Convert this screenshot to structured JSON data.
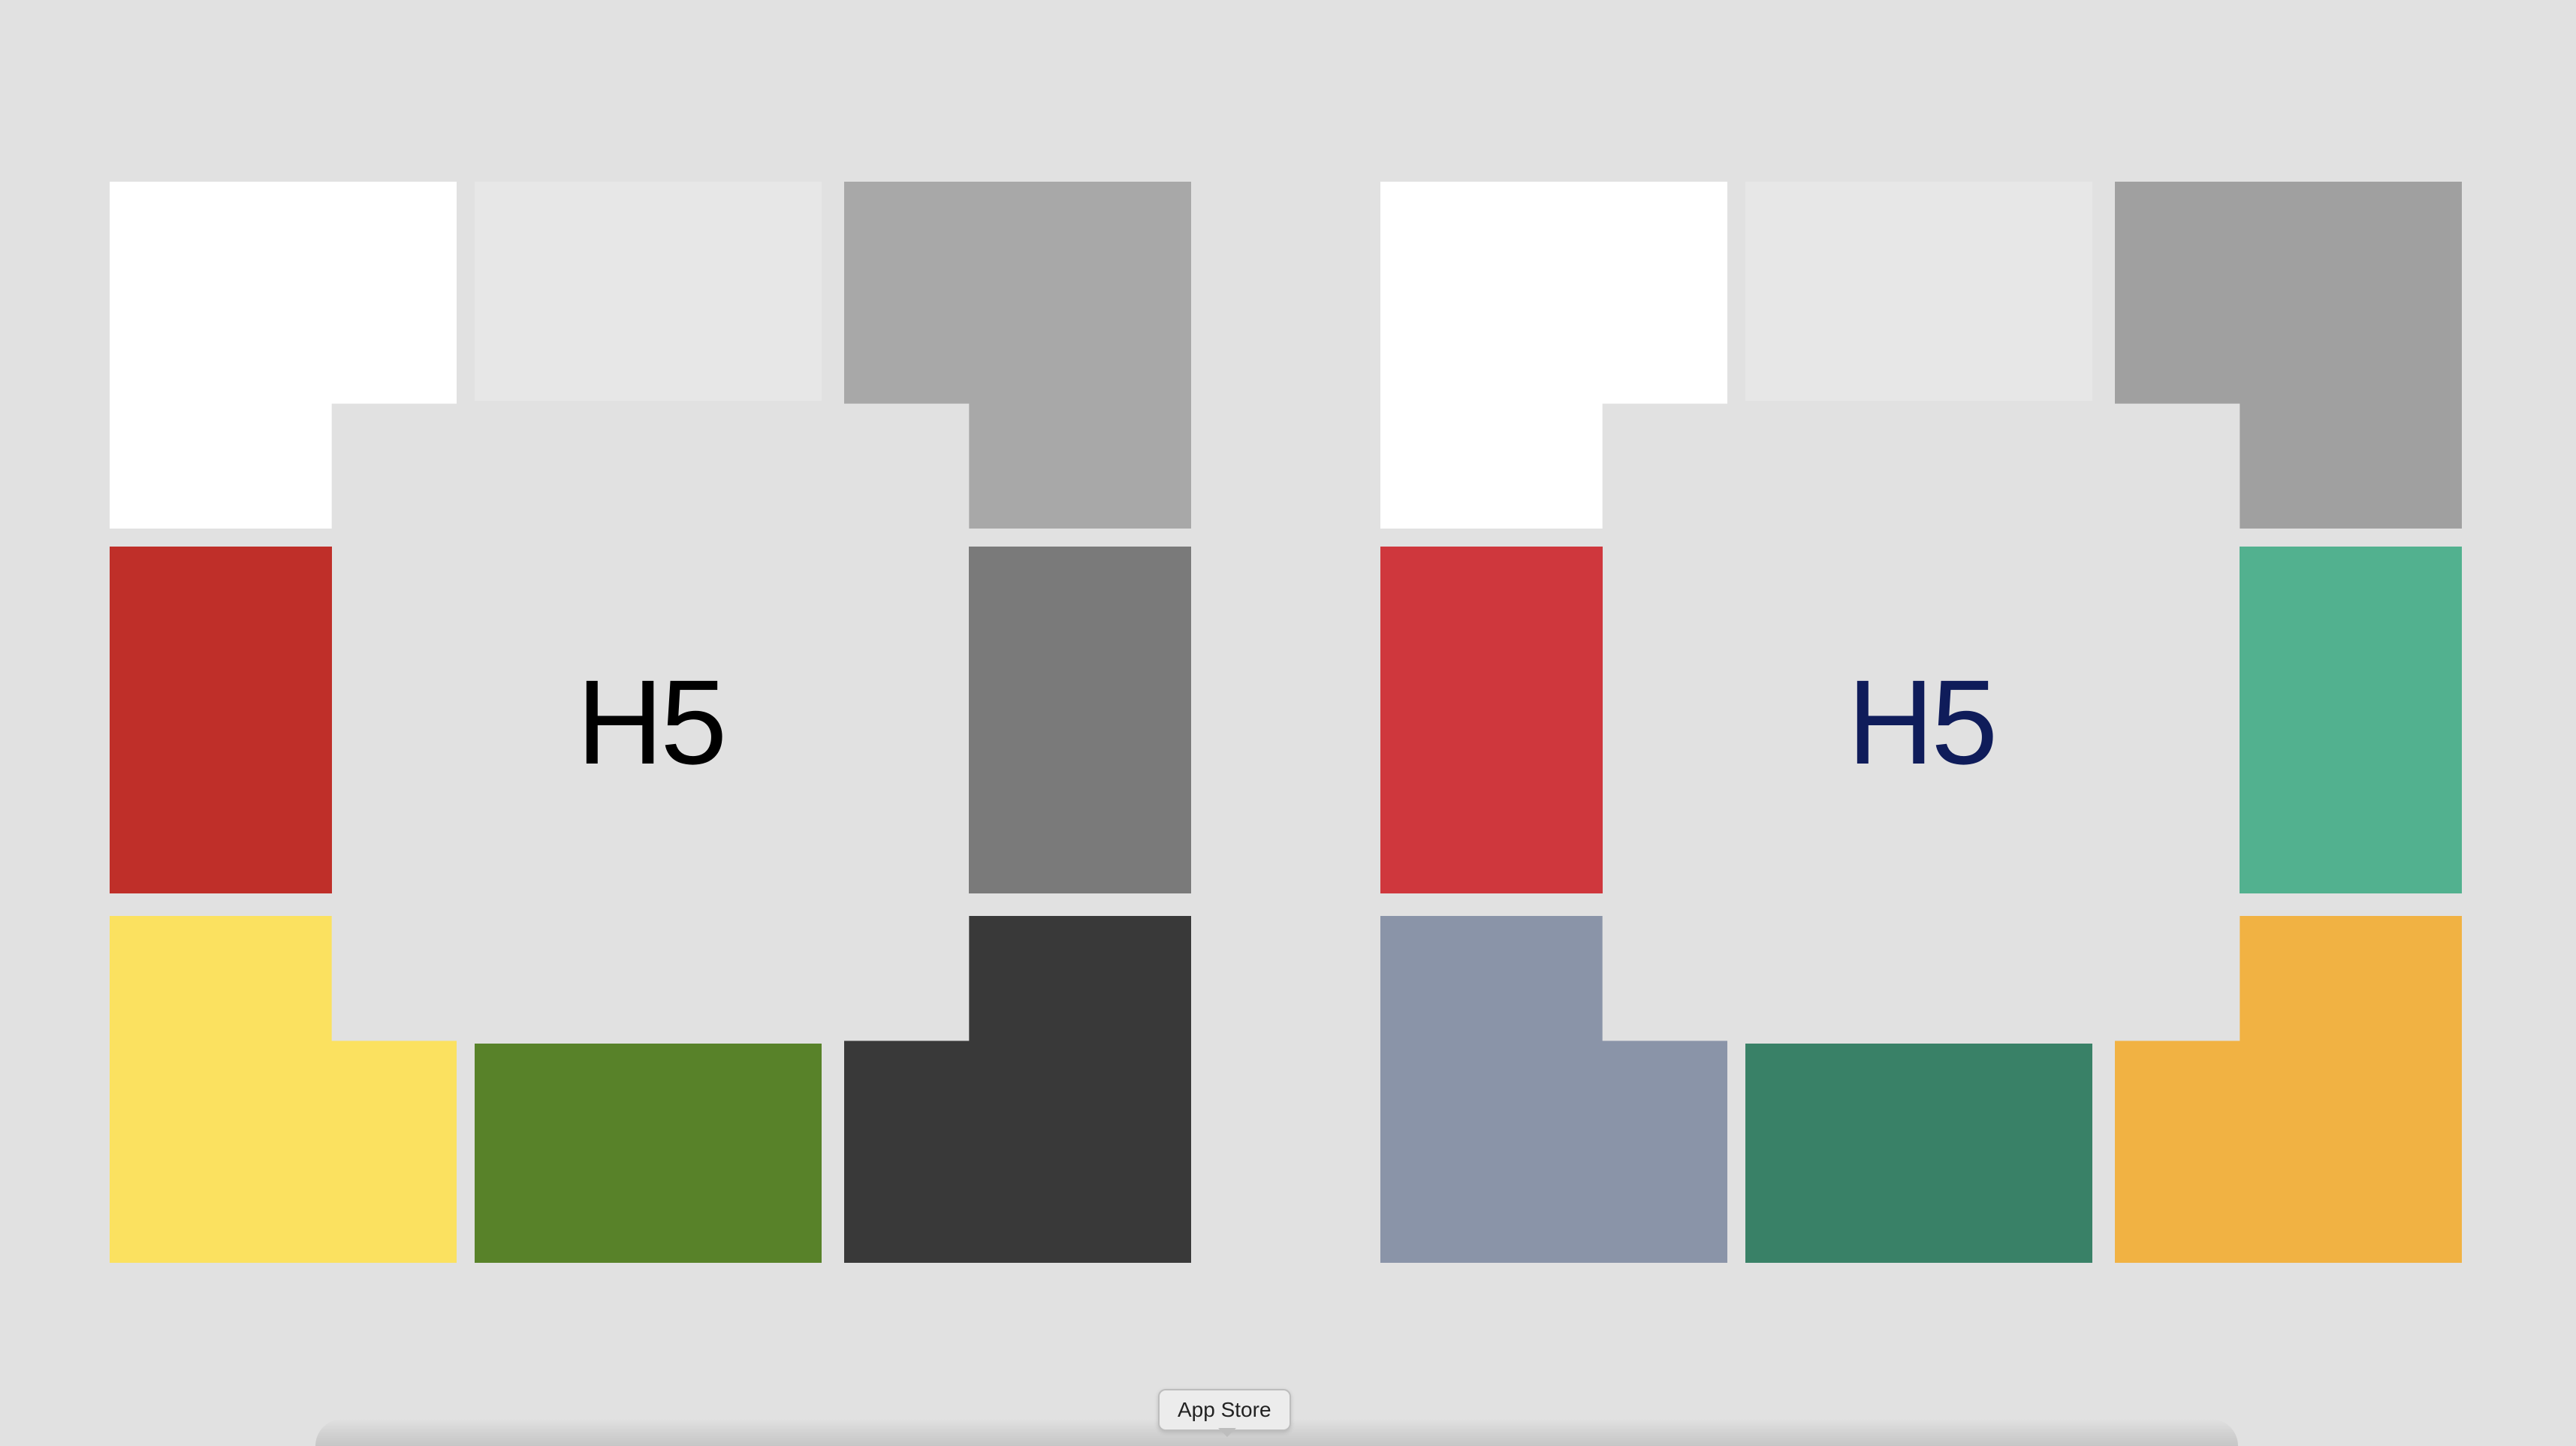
{
  "boards": [
    {
      "id": "left",
      "label": "H5",
      "label_color": "#000000",
      "tiles": {
        "top_left": "#ffffff",
        "top": "#e7e7e7",
        "top_right": "#a8a8a8",
        "left": "#bf2f29",
        "right": "#7a7a7a",
        "bottom_left": "#fbe160",
        "bottom": "#588229",
        "bottom_right": "#393939"
      }
    },
    {
      "id": "right",
      "label": "H5",
      "label_color": "#0f1c5a",
      "tiles": {
        "top_left": "#ffffff",
        "top": "#e7e7e7",
        "top_right": "#a0a0a0",
        "left": "#cf373d",
        "right": "#52b18f",
        "bottom_left": "#8a94a8",
        "bottom": "#398167",
        "bottom_right": "#f1b243"
      }
    }
  ],
  "dock": {
    "tooltip": "App Store"
  }
}
